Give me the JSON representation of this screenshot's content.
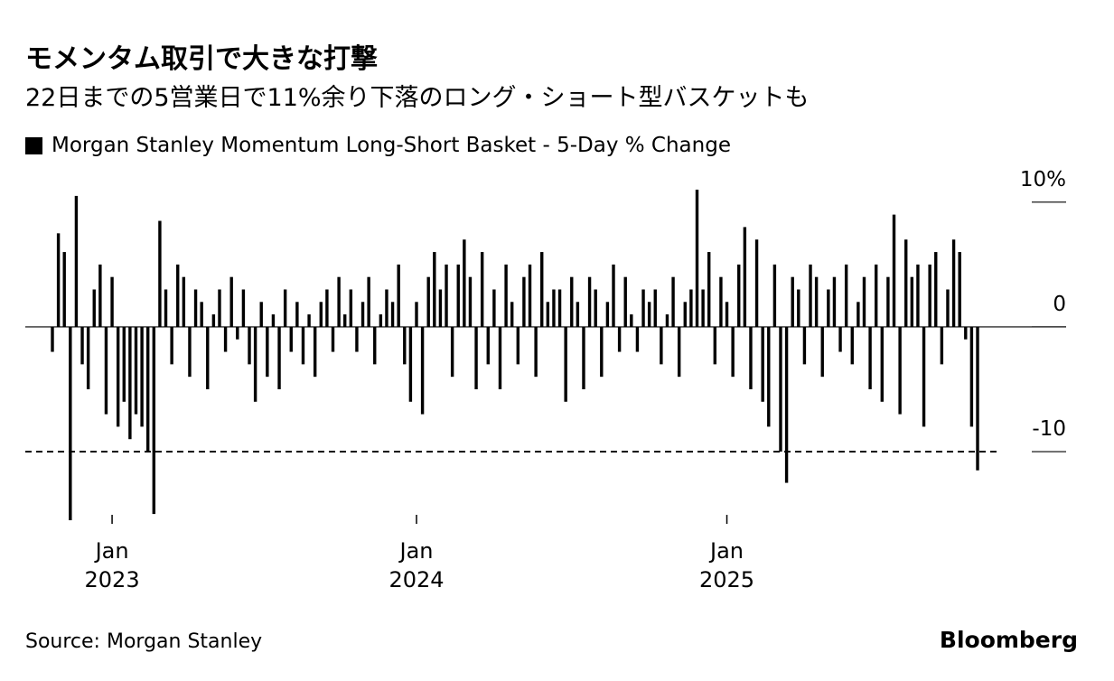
{
  "title": "モメンタム取引で大きな打撃",
  "subtitle": "22日までの5営業日で11%余り下落のロング・ショート型バスケットも",
  "footer": {
    "source": "Source: Morgan Stanley",
    "brand": "Bloomberg"
  },
  "chart_data": {
    "type": "bar",
    "categories": [
      null,
      null,
      null,
      null,
      null,
      null,
      null,
      null,
      null,
      null,
      "Jan 2023",
      null,
      null,
      null,
      null,
      null,
      null,
      null,
      null,
      null,
      null,
      null,
      null,
      null,
      null,
      null,
      null,
      null,
      null,
      null,
      null,
      null,
      null,
      null,
      null,
      null,
      null,
      null,
      null,
      null,
      null,
      null,
      null,
      null,
      null,
      null,
      null,
      null,
      null,
      null,
      null,
      null,
      null,
      null,
      null,
      null,
      null,
      null,
      null,
      null,
      null,
      "Jan 2024",
      null,
      null,
      null,
      null,
      null,
      null,
      null,
      null,
      null,
      null,
      null,
      null,
      null,
      null,
      null,
      null,
      null,
      null,
      null,
      null,
      null,
      null,
      null,
      null,
      null,
      null,
      null,
      null,
      null,
      null,
      null,
      null,
      null,
      null,
      null,
      null,
      null,
      null,
      null,
      null,
      null,
      null,
      null,
      null,
      null,
      null,
      null,
      null,
      null,
      null,
      null,
      "Jan 2025",
      null,
      null,
      null,
      null,
      null,
      null,
      null,
      null,
      null,
      null,
      null,
      null,
      null,
      null,
      null,
      null,
      null,
      null,
      null,
      null,
      null,
      null,
      null,
      null,
      null,
      null,
      null,
      null,
      null,
      null,
      null,
      null,
      null,
      null,
      null,
      null,
      null,
      null,
      null,
      null,
      null,
      null
    ],
    "series": [
      {
        "name": "Morgan Stanley Momentum Long-Short Basket - 5-Day % Change",
        "color": "#000000",
        "values": [
          -2,
          7.5,
          6,
          -15.5,
          10.5,
          -3,
          -5,
          3,
          5,
          -7,
          4,
          -8,
          -6,
          -9,
          -7,
          -8,
          -10,
          -15,
          8.5,
          3,
          -3,
          5,
          4,
          -4,
          3,
          2,
          -5,
          1,
          3,
          -2,
          4,
          -1,
          3,
          -3,
          -6,
          2,
          -4,
          1,
          -5,
          3,
          -2,
          2,
          -3,
          1,
          -4,
          2,
          3,
          -2,
          4,
          1,
          3,
          -2,
          2,
          4,
          -3,
          1,
          3,
          2,
          5,
          -3,
          -6,
          2,
          -7,
          4,
          6,
          3,
          5,
          -4,
          5,
          7,
          4,
          -5,
          6,
          -3,
          3,
          -5,
          5,
          2,
          -3,
          4,
          5,
          -4,
          6,
          2,
          3,
          3,
          -6,
          4,
          2,
          -5,
          4,
          3,
          -4,
          2,
          5,
          -2,
          4,
          1,
          -2,
          3,
          2,
          3,
          -3,
          1,
          4,
          -4,
          2,
          3,
          11,
          3,
          6,
          -3,
          4,
          2,
          -4,
          5,
          8,
          -5,
          7,
          -6,
          -8,
          5,
          -10,
          -12.5,
          4,
          3,
          -3,
          5,
          4,
          -4,
          3,
          4,
          -2,
          5,
          -3,
          2,
          4,
          -5,
          5,
          -6,
          4,
          9,
          -7,
          7,
          4,
          5,
          -8,
          5,
          6,
          -3,
          3,
          7,
          6,
          -1,
          -8,
          -11.5
        ]
      }
    ],
    "ylim": [
      -15.5,
      11
    ],
    "yticks": [
      {
        "value": 10,
        "label": "10%"
      },
      0,
      -10
    ],
    "reference_line": -10
  }
}
